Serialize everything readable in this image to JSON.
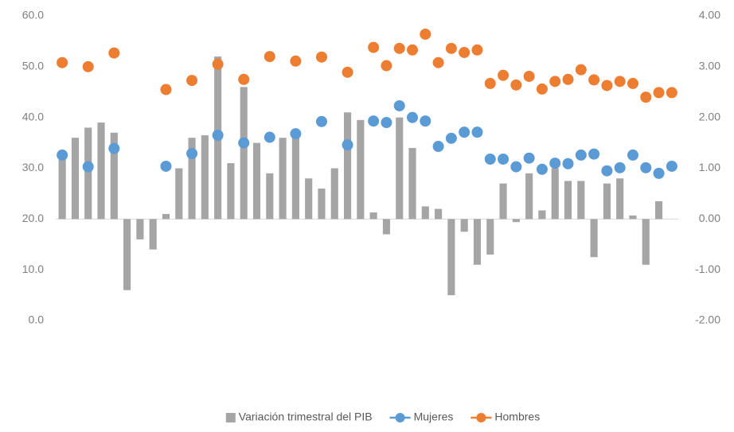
{
  "chart_data": {
    "type": "combo",
    "categories": [
      null,
      null,
      null,
      null,
      null,
      null,
      null,
      null,
      null,
      null,
      null,
      null,
      null,
      null,
      null,
      null,
      null,
      null,
      null,
      null,
      null,
      null,
      null,
      null,
      null,
      null,
      null,
      null,
      null,
      null,
      null,
      null,
      null,
      null,
      null,
      null,
      null,
      null,
      null,
      null,
      null,
      null,
      null,
      null,
      null,
      null,
      null,
      null
    ],
    "ylim": [
      0,
      60
    ],
    "yticks": [
      {
        "value": 0,
        "label": "0.0"
      },
      {
        "value": 10,
        "label": "10.0"
      },
      {
        "value": 20,
        "label": "20.0"
      },
      {
        "value": 30,
        "label": "30.0"
      },
      {
        "value": 40,
        "label": "40.0"
      },
      {
        "value": 50,
        "label": "50.0"
      },
      {
        "value": 60,
        "label": "60.0"
      }
    ],
    "y2lim": [
      -2,
      4
    ],
    "y2ticks": [
      {
        "value": -2,
        "label": "-2.00"
      },
      {
        "value": -1,
        "label": "-1.00"
      },
      {
        "value": 0,
        "label": "0.00"
      },
      {
        "value": 1,
        "label": "1.00"
      },
      {
        "value": 2,
        "label": "2.00"
      },
      {
        "value": 3,
        "label": "3.00"
      },
      {
        "value": 4,
        "label": "4.00"
      }
    ],
    "legend": "bottom",
    "series": [
      {
        "name": "Variación trimestral del PIB",
        "type": "bar",
        "axis": "y2",
        "color": "#a5a5a5",
        "values": [
          1.3,
          1.6,
          1.8,
          1.9,
          1.7,
          -1.4,
          -0.4,
          -0.6,
          0.1,
          1.0,
          1.6,
          1.65,
          3.2,
          1.1,
          2.6,
          1.5,
          0.9,
          1.6,
          1.65,
          0.8,
          0.6,
          1.0,
          2.1,
          1.95,
          0.13,
          -0.3,
          2.0,
          1.4,
          0.25,
          0.2,
          -1.5,
          -0.25,
          -0.9,
          -0.7,
          0.7,
          -0.06,
          0.9,
          0.17,
          1.0,
          0.75,
          0.75,
          -0.75,
          0.7,
          0.8,
          0.07,
          -0.9,
          0.35,
          null
        ]
      },
      {
        "name": "Mujeres",
        "type": "scatter",
        "color": "#5b9bd5",
        "values": [
          32.6,
          null,
          30.3,
          null,
          33.9,
          null,
          null,
          null,
          30.4,
          null,
          32.9,
          null,
          36.5,
          null,
          35.0,
          null,
          36.1,
          null,
          36.8,
          null,
          39.2,
          null,
          34.6,
          null,
          39.3,
          39.0,
          42.3,
          40.0,
          39.3,
          34.3,
          35.9,
          37.1,
          37.1,
          31.8,
          31.8,
          30.3,
          32.0,
          29.8,
          31.0,
          30.9,
          32.6,
          32.8,
          29.5,
          30.1,
          32.6,
          30.1,
          29.0,
          30.4
        ]
      },
      {
        "name": "Hombres",
        "type": "scatter",
        "color": "#ed7d31",
        "values": [
          50.8,
          null,
          50.0,
          null,
          52.7,
          null,
          null,
          null,
          45.5,
          null,
          47.3,
          null,
          50.5,
          null,
          47.5,
          null,
          52.0,
          null,
          51.1,
          null,
          51.9,
          null,
          48.9,
          null,
          53.8,
          50.2,
          53.6,
          53.3,
          56.4,
          50.8,
          53.6,
          52.8,
          53.3,
          46.7,
          48.3,
          46.4,
          48.1,
          45.6,
          47.1,
          47.5,
          49.4,
          47.4,
          46.3,
          47.1,
          46.7,
          44.0,
          44.9,
          44.9
        ]
      }
    ]
  }
}
